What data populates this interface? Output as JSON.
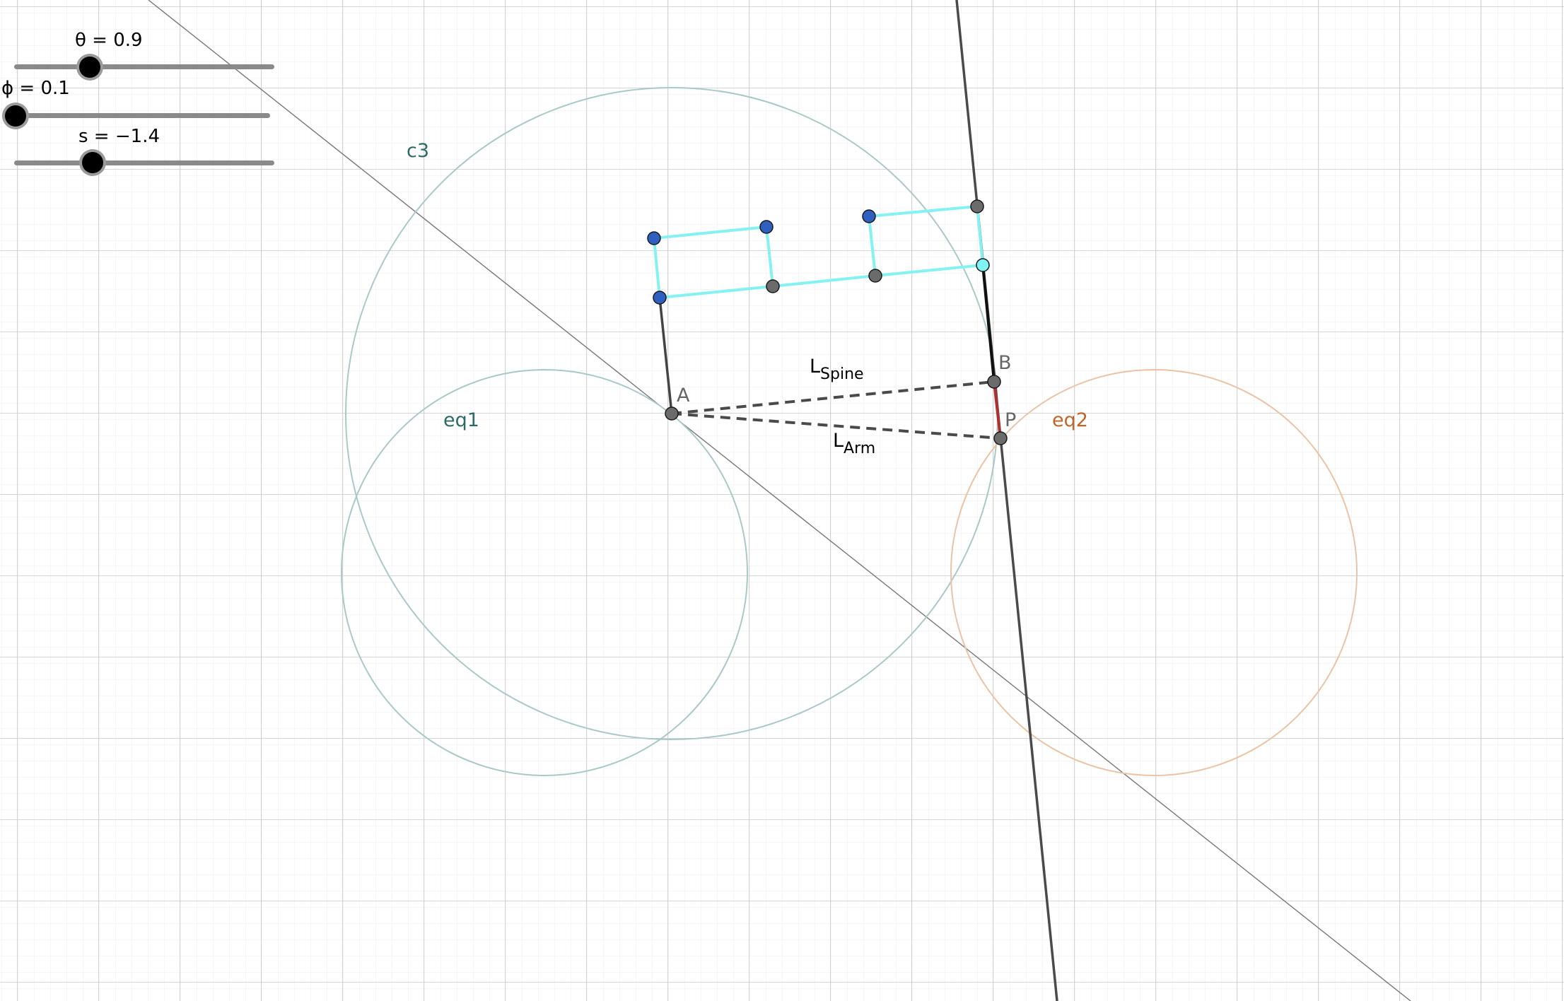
{
  "sliders": [
    {
      "label": "θ = 0.9"
    },
    {
      "label": "ϕ = 0.1"
    },
    {
      "label": "s = −1.4"
    }
  ],
  "labels": {
    "c3": "c3",
    "eq1": "eq1",
    "eq2": "eq2",
    "A": "A",
    "B": "B",
    "P": "P",
    "L_spine_main": "L",
    "L_spine_sub": "Spine",
    "L_arm_main": "L",
    "L_arm_sub": "Arm"
  },
  "colors": {
    "grid_major": "#c8c8c8",
    "grid_minor": "#ececec",
    "circle_teal": "#a9c9c6",
    "circle_orange": "#ebc3a6",
    "label_teal": "#2d6a66",
    "label_orange": "#c0652a",
    "cyan": "#7ef4f4",
    "blue_point": "#2f5fbf",
    "gray_point": "#6b6b6b",
    "segment_red": "#b03030",
    "line_dark": "#444444"
  }
}
